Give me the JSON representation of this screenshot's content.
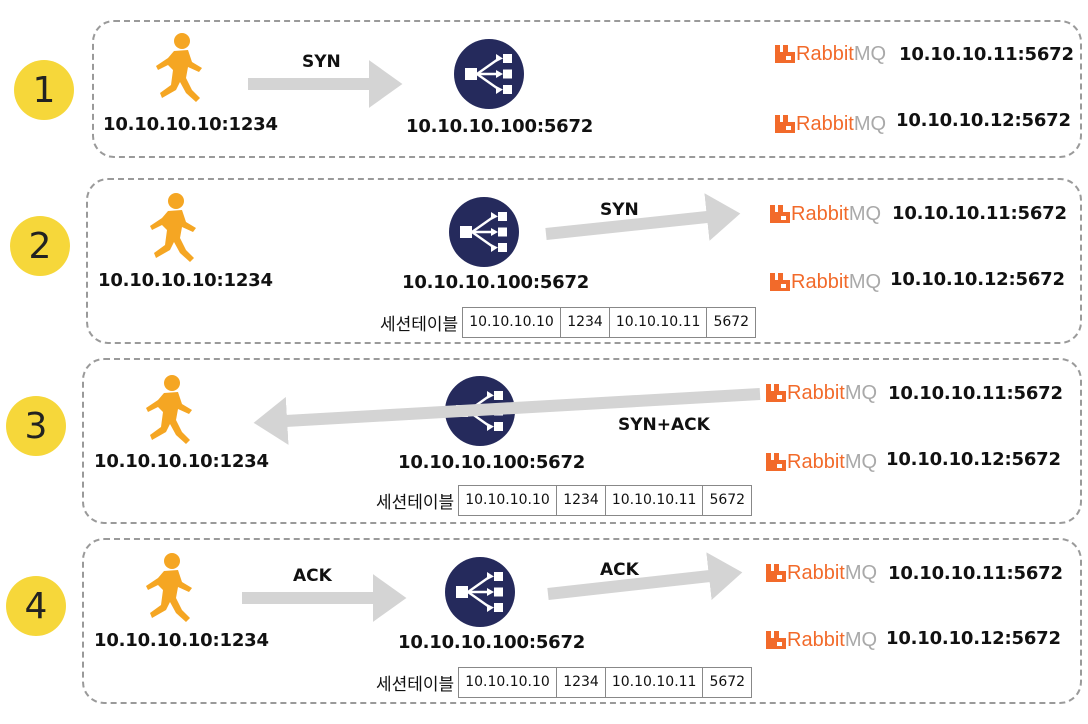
{
  "steps": [
    {
      "number": "1",
      "client": "10.10.10.10:1234",
      "balancer": "10.10.10.100:5672",
      "servers": [
        "10.10.10.11:5672",
        "10.10.10.12:5672"
      ],
      "arrow_labels": [
        "SYN"
      ]
    },
    {
      "number": "2",
      "client": "10.10.10.10:1234",
      "balancer": "10.10.10.100:5672",
      "servers": [
        "10.10.10.11:5672",
        "10.10.10.12:5672"
      ],
      "arrow_labels": [
        "SYN"
      ],
      "session": {
        "caption": "세션테이블",
        "cells": [
          "10.10.10.10",
          "1234",
          "10.10.10.11",
          "5672"
        ]
      }
    },
    {
      "number": "3",
      "client": "10.10.10.10:1234",
      "balancer": "10.10.10.100:5672",
      "servers": [
        "10.10.10.11:5672",
        "10.10.10.12:5672"
      ],
      "arrow_labels": [
        "SYN+ACK"
      ],
      "session": {
        "caption": "세션테이블",
        "cells": [
          "10.10.10.10",
          "1234",
          "10.10.10.11",
          "5672"
        ]
      }
    },
    {
      "number": "4",
      "client": "10.10.10.10:1234",
      "balancer": "10.10.10.100:5672",
      "servers": [
        "10.10.10.11:5672",
        "10.10.10.12:5672"
      ],
      "arrow_labels": [
        "ACK",
        "ACK"
      ],
      "session": {
        "caption": "세션테이블",
        "cells": [
          "10.10.10.10",
          "1234",
          "10.10.10.11",
          "5672"
        ]
      }
    }
  ],
  "brand": {
    "rabbit": "Rabbit",
    "mq": "MQ"
  },
  "icons": {
    "client": "runner-icon",
    "balancer": "load-balancer-icon",
    "server": "rabbitmq-logo-icon"
  },
  "colors": {
    "badge": "#f6d73a",
    "runner": "#f5a623",
    "balancer": "#252a5c",
    "arrow": "#d4d4d4",
    "rabbit": "#f26a2a",
    "mq": "#a9a9a9"
  }
}
